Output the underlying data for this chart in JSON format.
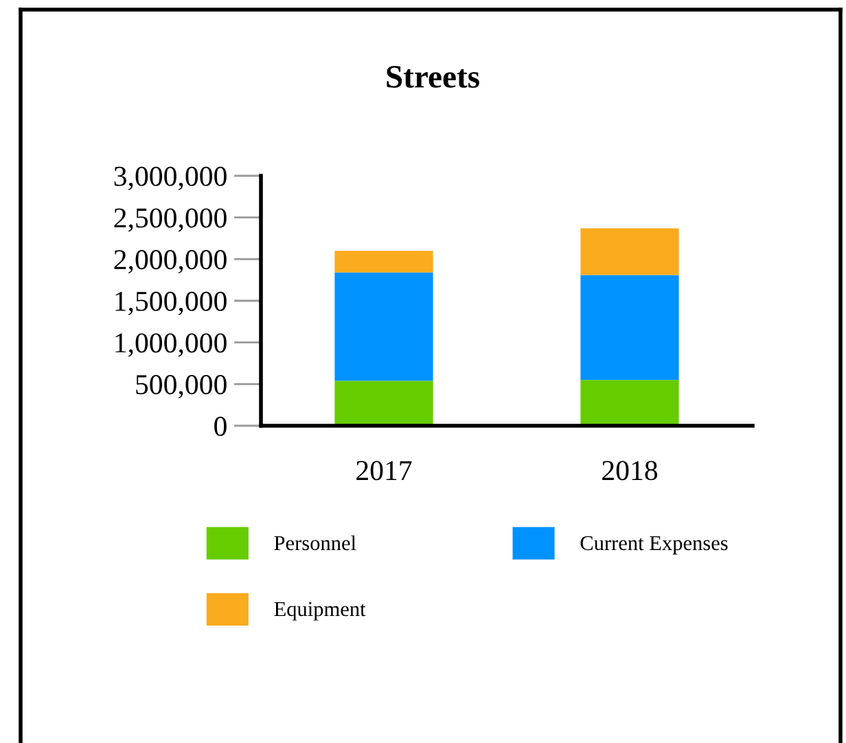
{
  "chart_data": {
    "type": "bar",
    "title": "Streets",
    "categories": [
      "2017",
      "2018"
    ],
    "stacked": true,
    "series": [
      {
        "name": "Personnel",
        "color": "#66cc00",
        "values": [
          540000,
          550000
        ]
      },
      {
        "name": "Current Expenses",
        "color": "#0092ff",
        "values": [
          1300000,
          1260000
        ]
      },
      {
        "name": "Equipment",
        "color": "#faab1e",
        "values": [
          260000,
          560000
        ]
      }
    ],
    "ylim": [
      0,
      3000000
    ],
    "yticks": [
      {
        "value": 0,
        "label": "0"
      },
      {
        "value": 500000,
        "label": "500,000"
      },
      {
        "value": 1000000,
        "label": "1,000,000"
      },
      {
        "value": 1500000,
        "label": "1,500,000"
      },
      {
        "value": 2000000,
        "label": "2,000,000"
      },
      {
        "value": 2500000,
        "label": "2,500,000"
      },
      {
        "value": 3000000,
        "label": "3,000,000"
      }
    ],
    "grid": false,
    "legend": "bottom"
  }
}
